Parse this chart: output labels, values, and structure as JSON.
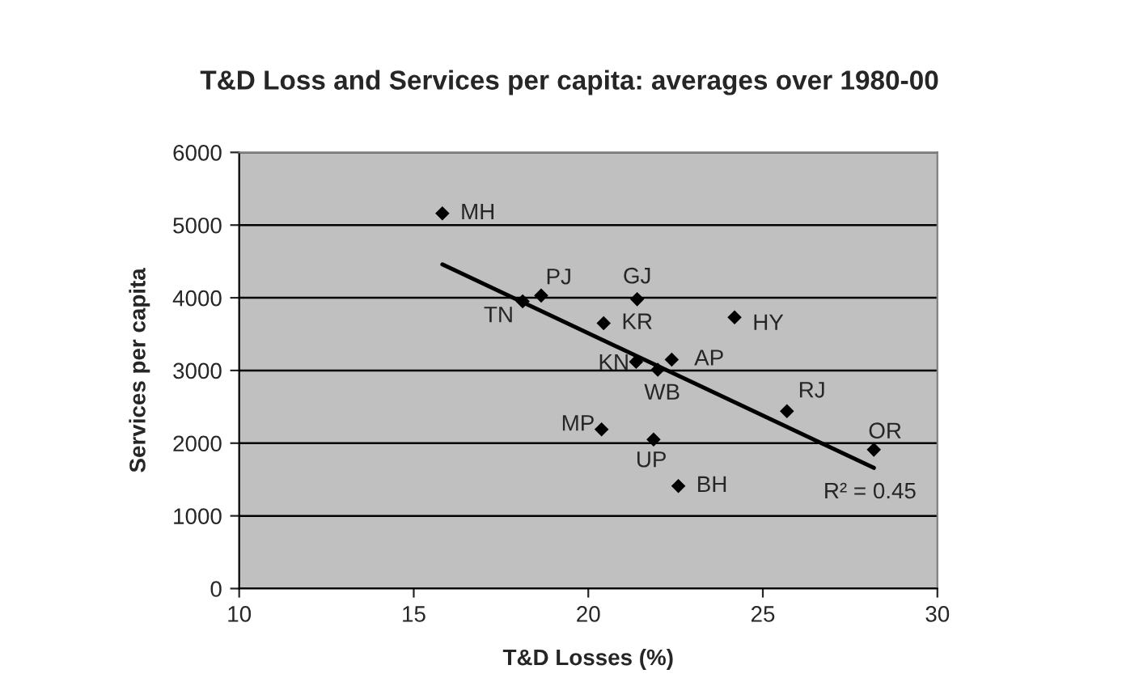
{
  "chart_data": {
    "type": "scatter",
    "title": "T&D Loss and Services per capita: averages over 1980-00",
    "xlabel": "T&D Losses (%)",
    "ylabel": "Services per capita",
    "x": [
      15.82,
      18.12,
      18.65,
      21.4,
      20.44,
      24.19,
      21.37,
      22.39,
      21.99,
      25.69,
      20.38,
      21.87,
      22.58,
      28.18
    ],
    "series": [
      {
        "color": "#000000",
        "marker": "diamond",
        "values": [
          5160,
          3950,
          4030,
          3980,
          3650,
          3730,
          3120,
          3150,
          3010,
          2440,
          2190,
          2050,
          1410,
          1910
        ]
      },
      {
        "type": "line",
        "color": "#000000",
        "x": [
          15.82,
          28.18
        ],
        "values": [
          4460,
          1660
        ]
      }
    ],
    "annotations": [
      {
        "text": "MH",
        "x": 15.82,
        "y": 5160
      },
      {
        "text": "TN",
        "x": 18.12,
        "y": 3950
      },
      {
        "text": "PJ",
        "x": 18.65,
        "y": 4030
      },
      {
        "text": "GJ",
        "x": 21.4,
        "y": 3980
      },
      {
        "text": "KR",
        "x": 20.44,
        "y": 3650
      },
      {
        "text": "HY",
        "x": 24.19,
        "y": 3730
      },
      {
        "text": "KN",
        "x": 21.37,
        "y": 3120
      },
      {
        "text": "AP",
        "x": 22.39,
        "y": 3150
      },
      {
        "text": "WB",
        "x": 21.99,
        "y": 3010
      },
      {
        "text": "RJ",
        "x": 25.69,
        "y": 2440
      },
      {
        "text": "MP",
        "x": 20.38,
        "y": 2190
      },
      {
        "text": "UP",
        "x": 21.87,
        "y": 2050
      },
      {
        "text": "BH",
        "x": 22.58,
        "y": 1410
      },
      {
        "text": "OR",
        "x": 28.18,
        "y": 1910
      },
      "R² = 0.45"
    ],
    "xlim": [
      10,
      30
    ],
    "xticks": [
      10,
      15,
      20,
      25,
      30
    ],
    "ylim": [
      0,
      6000
    ],
    "yticks": [
      0,
      1000,
      2000,
      3000,
      4000,
      5000,
      6000
    ],
    "grid": "y",
    "legend": false
  }
}
